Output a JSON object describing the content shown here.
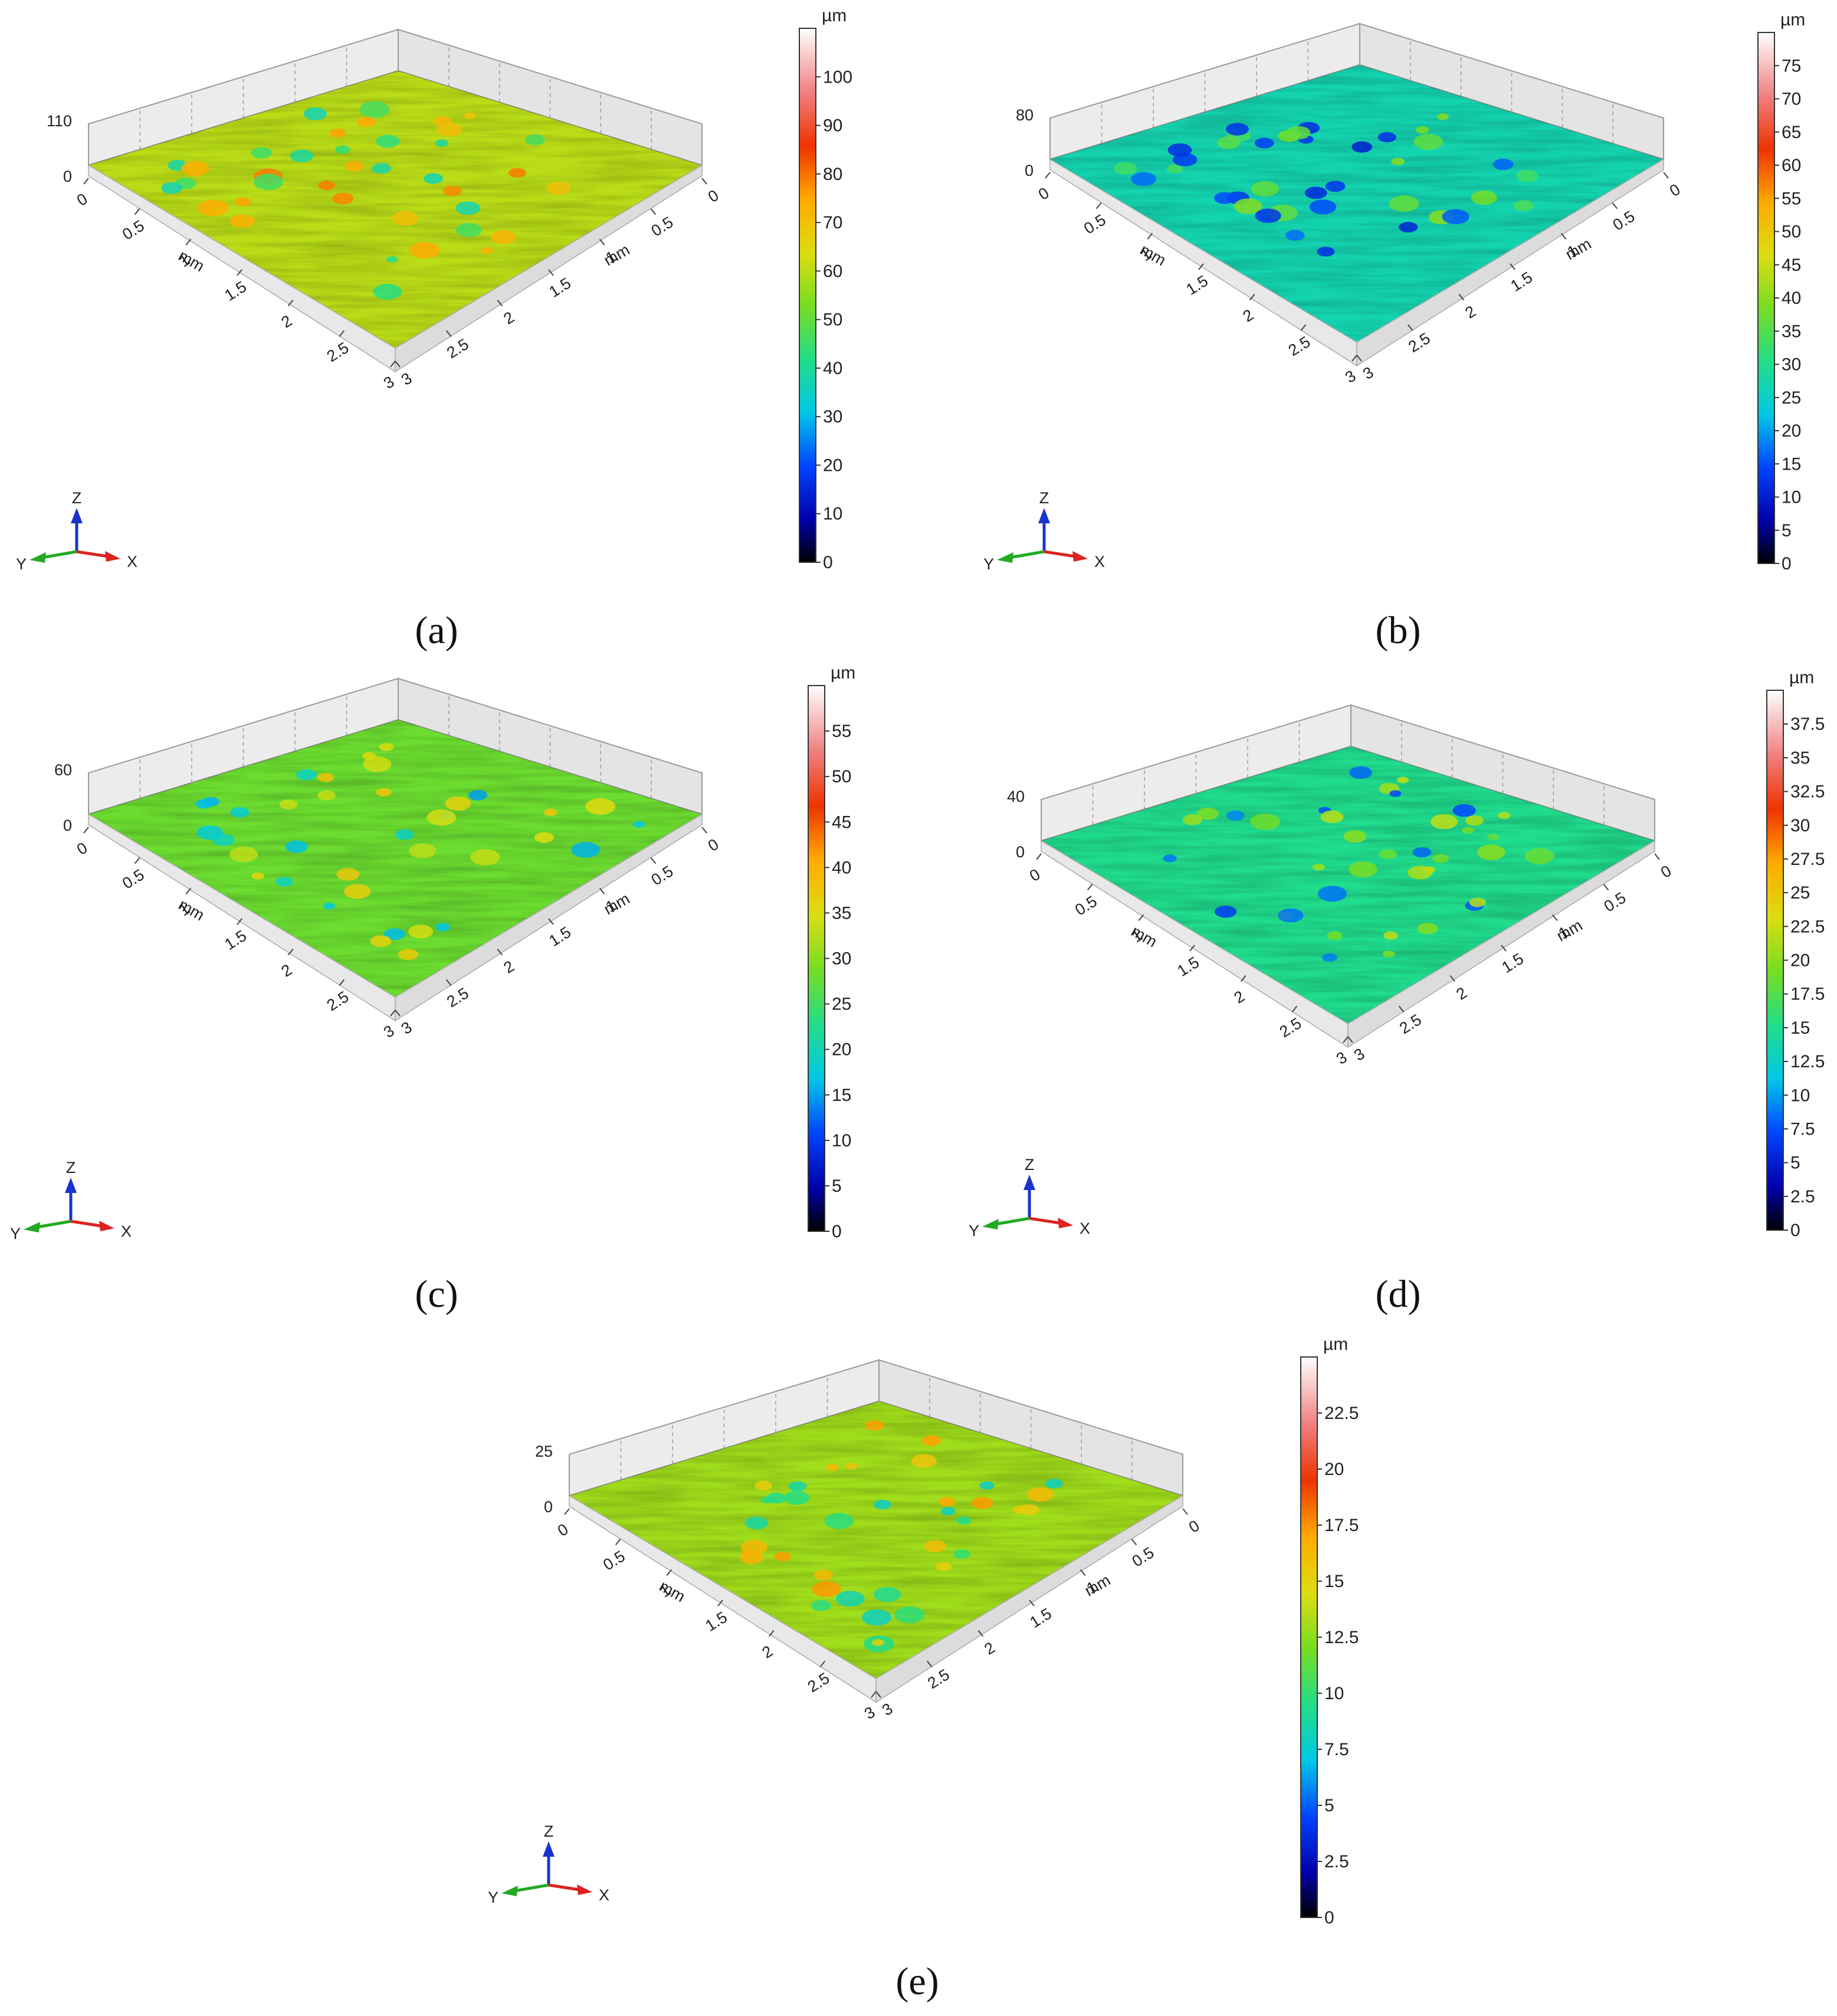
{
  "figure": {
    "panels": [
      {
        "label": "(a)",
        "bold": "a",
        "z_tick": "110",
        "cb_unit": "µm",
        "cb_max": 110,
        "cb_ticks": [
          0,
          10,
          20,
          30,
          40,
          50,
          60,
          70,
          80,
          90,
          100
        ],
        "base_value": 60
      },
      {
        "label": "(b)",
        "bold": "b",
        "z_tick": "80",
        "cb_unit": "µm",
        "cb_max": 80,
        "cb_ticks": [
          0,
          5,
          10,
          15,
          20,
          25,
          30,
          35,
          40,
          45,
          50,
          55,
          60,
          65,
          70,
          75
        ],
        "base_value": 27
      },
      {
        "label": "(c)",
        "bold": "c",
        "z_tick": "60",
        "cb_unit": "µm",
        "cb_max": 60,
        "cb_ticks": [
          0,
          5,
          10,
          15,
          20,
          25,
          30,
          35,
          40,
          45,
          50,
          55
        ],
        "base_value": 28
      },
      {
        "label": "(d)",
        "bold": "d",
        "z_tick": "40",
        "cb_unit": "µm",
        "cb_max": 40,
        "cb_ticks": [
          0,
          2.5,
          5,
          7.5,
          10,
          12.5,
          15,
          17.5,
          20,
          22.5,
          25,
          27.5,
          30,
          32.5,
          35,
          37.5
        ],
        "base_value": 15
      },
      {
        "label": "(e)",
        "bold": "e",
        "z_tick": "25",
        "cb_unit": "µm",
        "cb_max": 25,
        "cb_ticks": [
          0,
          2.5,
          5,
          7.5,
          10,
          12.5,
          15,
          17.5,
          20,
          22.5
        ],
        "base_value": 13
      }
    ],
    "axis_unit": "mm",
    "axis_ticks_left": [
      "0",
      "0.5",
      "1",
      "1.5",
      "2",
      "2.5",
      "3"
    ],
    "axis_ticks_right": [
      "0",
      "0.5",
      "1",
      "1.5",
      "2",
      "2.5",
      "3"
    ],
    "z_zero": "0",
    "triad": {
      "z": "Z",
      "y": "Y",
      "x": "X"
    },
    "colors": {
      "triad_z": "#1a33cc",
      "triad_y": "#22aa22",
      "triad_x": "#dd2222"
    }
  },
  "chart_data": [
    {
      "type": "heatmap",
      "subtype": "3d-surface",
      "panel": "a",
      "z_unit": "µm",
      "x_unit": "mm",
      "y_unit": "mm",
      "x_range": [
        0,
        3
      ],
      "y_range": [
        0,
        3
      ],
      "z_range": [
        0,
        110
      ],
      "colorbar_range": [
        0,
        110
      ],
      "typical_height": 60
    },
    {
      "type": "heatmap",
      "subtype": "3d-surface",
      "panel": "b",
      "z_unit": "µm",
      "x_unit": "mm",
      "y_unit": "mm",
      "x_range": [
        0,
        3
      ],
      "y_range": [
        0,
        3
      ],
      "z_range": [
        0,
        80
      ],
      "colorbar_range": [
        0,
        80
      ],
      "typical_height": 27
    },
    {
      "type": "heatmap",
      "subtype": "3d-surface",
      "panel": "c",
      "z_unit": "µm",
      "x_unit": "mm",
      "y_unit": "mm",
      "x_range": [
        0,
        3
      ],
      "y_range": [
        0,
        3
      ],
      "z_range": [
        0,
        60
      ],
      "colorbar_range": [
        0,
        60
      ],
      "typical_height": 28
    },
    {
      "type": "heatmap",
      "subtype": "3d-surface",
      "panel": "d",
      "z_unit": "µm",
      "x_unit": "mm",
      "y_unit": "mm",
      "x_range": [
        0,
        3
      ],
      "y_range": [
        0,
        3
      ],
      "z_range": [
        0,
        40
      ],
      "colorbar_range": [
        0,
        40
      ],
      "typical_height": 15
    },
    {
      "type": "heatmap",
      "subtype": "3d-surface",
      "panel": "e",
      "z_unit": "µm",
      "x_unit": "mm",
      "y_unit": "mm",
      "x_range": [
        0,
        3
      ],
      "y_range": [
        0,
        3
      ],
      "z_range": [
        0,
        25
      ],
      "colorbar_range": [
        0,
        25
      ],
      "typical_height": 13
    }
  ]
}
